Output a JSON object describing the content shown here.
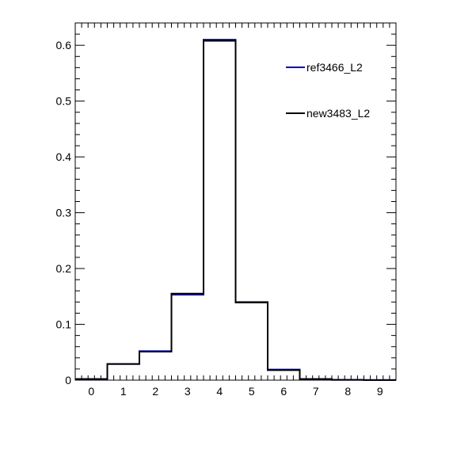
{
  "chart_data": {
    "type": "histogram",
    "title": "",
    "xlabel": "",
    "ylabel": "",
    "xlim": [
      -0.5,
      9.5
    ],
    "ylim": [
      0,
      0.64
    ],
    "grid": false,
    "legend_position": "top-right",
    "bin_edges": [
      -0.5,
      0.5,
      1.5,
      2.5,
      3.5,
      4.5,
      5.5,
      6.5,
      7.5,
      8.5,
      9.5
    ],
    "x_ticks": [
      0,
      1,
      2,
      3,
      4,
      5,
      6,
      7,
      8,
      9
    ],
    "x_tick_labels": [
      "0",
      "1",
      "2",
      "3",
      "4",
      "5",
      "6",
      "7",
      "8",
      "9"
    ],
    "y_ticks": [
      0,
      0.1,
      0.2,
      0.3,
      0.4,
      0.5,
      0.6
    ],
    "y_tick_labels": [
      "0",
      "0.1",
      "0.2",
      "0.3",
      "0.4",
      "0.5",
      "0.6"
    ],
    "series": [
      {
        "name": "ref3466_L2",
        "color": "#0000cc",
        "values": [
          0.002,
          0.029,
          0.052,
          0.153,
          0.61,
          0.14,
          0.019,
          0.002,
          0.0005,
          0.0002
        ]
      },
      {
        "name": "new3483_L2",
        "color": "#000000",
        "values": [
          0.002,
          0.029,
          0.051,
          0.155,
          0.608,
          0.139,
          0.018,
          0.002,
          0.0005,
          0.0002
        ]
      }
    ]
  }
}
